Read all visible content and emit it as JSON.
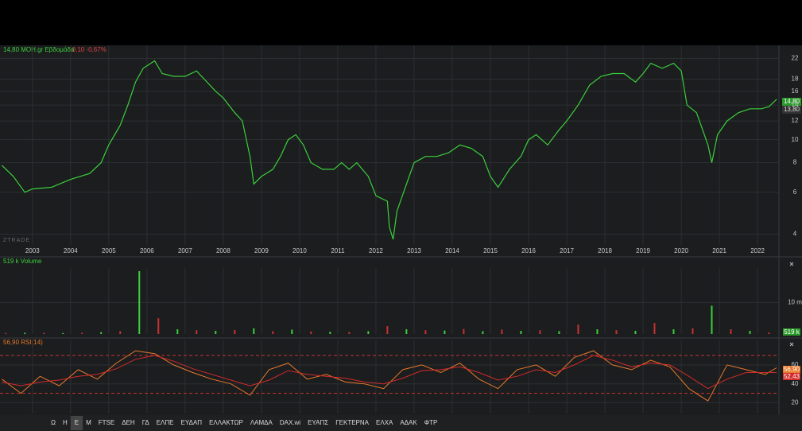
{
  "header": {
    "quote": "14,80 ΜΟΗ.gr Εβδομάδα",
    "change": "-0,10 -0,67%",
    "watermark": "ZTRADE",
    "price_tags": [
      "14,80",
      "13,80"
    ]
  },
  "toolbar": [
    "Ω",
    "H",
    "E",
    "M",
    "FTSE",
    "ΔΕΗ",
    "ΓΔ",
    "ΕΛΠΕ",
    "ΕΥΔΑΠ",
    "ΕΛΛΑΚΤΩΡ",
    "ΛΑΜΔΑ",
    "DAX.wi",
    "ΕΥΑΠΣ",
    "ΓΕΚΤΕΡΝΑ",
    "ΕΛΧΑ",
    "ΑΔΑΚ",
    "ΦΤΡ"
  ],
  "chart_data": [
    {
      "type": "line",
      "log": true,
      "color": "#3ccf3c",
      "grid": true,
      "x": [
        2002.2,
        2002.5,
        2002.8,
        2003,
        2003.5,
        2004,
        2004.5,
        2004.8,
        2005,
        2005.3,
        2005.5,
        2005.7,
        2005.9,
        2006.2,
        2006.4,
        2006.7,
        2007,
        2007.3,
        2007.5,
        2007.8,
        2008,
        2008.3,
        2008.5,
        2008.7,
        2008.8,
        2009,
        2009.3,
        2009.5,
        2009.7,
        2009.9,
        2010.1,
        2010.3,
        2010.6,
        2010.9,
        2011.1,
        2011.3,
        2011.5,
        2011.8,
        2012,
        2012.3,
        2012.35,
        2012.45,
        2012.55,
        2012.8,
        2013,
        2013.3,
        2013.6,
        2013.9,
        2014.2,
        2014.5,
        2014.8,
        2015,
        2015.2,
        2015.5,
        2015.8,
        2016,
        2016.2,
        2016.5,
        2016.8,
        2017,
        2017.3,
        2017.6,
        2017.9,
        2018.2,
        2018.5,
        2018.8,
        2019,
        2019.2,
        2019.5,
        2019.8,
        2020,
        2020.15,
        2020.4,
        2020.7,
        2020.8,
        2020.95,
        2021.2,
        2021.5,
        2021.8,
        2022.1,
        2022.3,
        2022.5
      ],
      "values": [
        7.8,
        7.0,
        6.0,
        6.2,
        6.3,
        6.8,
        7.2,
        8.0,
        9.5,
        11.5,
        14,
        17.5,
        20,
        21.5,
        19,
        18.5,
        18.5,
        19.5,
        18,
        16,
        15,
        13,
        12,
        8.5,
        6.5,
        7.0,
        7.5,
        8.5,
        10,
        10.5,
        9.5,
        8,
        7.5,
        7.5,
        8.0,
        7.5,
        8.0,
        7,
        5.8,
        5.5,
        4.3,
        3.8,
        5,
        6.5,
        8,
        8.5,
        8.5,
        8.8,
        9.5,
        9.2,
        8.5,
        7.0,
        6.3,
        7.5,
        8.5,
        10,
        10.5,
        9.5,
        11,
        12,
        14,
        17,
        18.5,
        19,
        19,
        17.5,
        19,
        21,
        20,
        21,
        19.5,
        14,
        13,
        9.5,
        8.0,
        10.5,
        12,
        13,
        13.5,
        13.5,
        13.8,
        14.8
      ],
      "xlim": [
        2002.15,
        2022.56
      ],
      "xticks": [
        2003,
        2004,
        2005,
        2006,
        2007,
        2008,
        2009,
        2010,
        2011,
        2012,
        2013,
        2014,
        2015,
        2016,
        2017,
        2018,
        2019,
        2020,
        2021,
        2022
      ],
      "ylim": [
        3.6,
        25
      ],
      "yticks": [
        4,
        6,
        8,
        10,
        12,
        14,
        16,
        18,
        22
      ]
    },
    {
      "type": "bar",
      "title": "519 k Volume",
      "last_label": "519 k",
      "x": [
        2002.3,
        2002.8,
        2003.3,
        2003.8,
        2004.3,
        2004.8,
        2005.3,
        2005.8,
        2006.3,
        2006.8,
        2007.3,
        2007.8,
        2008.3,
        2008.8,
        2009.3,
        2009.8,
        2010.3,
        2010.8,
        2011.3,
        2011.8,
        2012.3,
        2012.8,
        2013.3,
        2013.8,
        2014.3,
        2014.8,
        2015.3,
        2015.8,
        2016.3,
        2016.8,
        2017.3,
        2017.8,
        2018.3,
        2018.8,
        2019.3,
        2019.8,
        2020.3,
        2020.8,
        2021.3,
        2021.8,
        2022.3
      ],
      "values": [
        300000,
        400000,
        350000,
        300000,
        400000,
        600000,
        900000,
        20000000,
        5000000,
        1500000,
        1200000,
        1000000,
        1300000,
        1800000,
        900000,
        1400000,
        800000,
        700000,
        600000,
        900000,
        2500000,
        1500000,
        1200000,
        1100000,
        1600000,
        900000,
        1400000,
        1000000,
        1200000,
        900000,
        3000000,
        1500000,
        1200000,
        1000000,
        3500000,
        1500000,
        1800000,
        9000000,
        1500000,
        1000000,
        519000
      ],
      "colors": [
        "#c83232",
        "#3ccf3c"
      ],
      "xlim": [
        2002.15,
        2022.56
      ],
      "ylim": [
        0,
        21000000
      ],
      "yticks": [
        {
          "value": 10000000,
          "label": "10 m"
        }
      ]
    },
    {
      "type": "line",
      "title": "56,90 RSI(14)",
      "last_labels": [
        "56,90",
        "52,43"
      ],
      "x": [
        2002.2,
        2002.7,
        2003.2,
        2003.7,
        2004.2,
        2004.7,
        2005.2,
        2005.7,
        2006.2,
        2006.7,
        2007.2,
        2007.7,
        2008.2,
        2008.7,
        2009.2,
        2009.7,
        2010.2,
        2010.7,
        2011.2,
        2011.7,
        2012.2,
        2012.7,
        2013.2,
        2013.7,
        2014.2,
        2014.7,
        2015.2,
        2015.7,
        2016.2,
        2016.7,
        2017.2,
        2017.7,
        2018.2,
        2018.7,
        2019.2,
        2019.7,
        2020.2,
        2020.7,
        2021.2,
        2021.7,
        2022.2,
        2022.5
      ],
      "series": [
        {
          "color": "#e8782a",
          "values": [
            45,
            30,
            48,
            38,
            55,
            45,
            62,
            75,
            72,
            60,
            52,
            45,
            40,
            28,
            55,
            62,
            45,
            50,
            42,
            40,
            35,
            55,
            60,
            52,
            62,
            45,
            35,
            55,
            60,
            48,
            68,
            75,
            60,
            55,
            65,
            58,
            35,
            22,
            60,
            55,
            50,
            57
          ]
        },
        {
          "color": "#d42a2a",
          "values": [
            42,
            38,
            42,
            44,
            48,
            50,
            56,
            66,
            70,
            64,
            56,
            50,
            44,
            38,
            44,
            54,
            50,
            48,
            46,
            42,
            40,
            46,
            54,
            55,
            58,
            52,
            44,
            48,
            55,
            52,
            60,
            70,
            65,
            58,
            62,
            60,
            48,
            35,
            45,
            52,
            52,
            52
          ]
        }
      ],
      "levels": [
        70,
        30
      ],
      "xlim": [
        2002.15,
        2022.56
      ],
      "ylim": [
        8.7,
        86
      ],
      "yticks": [
        20,
        40,
        60
      ]
    }
  ]
}
